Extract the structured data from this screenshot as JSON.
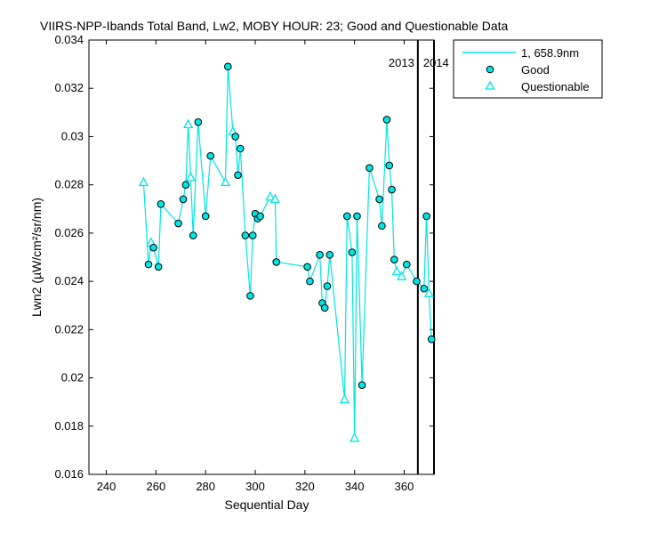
{
  "chart_data": {
    "type": "line",
    "title": "VIIRS-NPP-Ibands Total Band, Lw2, MOBY HOUR: 23;  Good and Questionable Data",
    "xlabel": "Sequential Day",
    "ylabel": "Lwn2 (µW/cm²/sr/nm)",
    "xlim": [
      233,
      372
    ],
    "ylim": [
      0.016,
      0.034
    ],
    "xticks": [
      "240",
      "260",
      "280",
      "300",
      "320",
      "340",
      "360"
    ],
    "yticks": [
      "0.016",
      "0.018",
      "0.02",
      "0.022",
      "0.024",
      "0.026",
      "0.028",
      "0.03",
      "0.032",
      "0.034"
    ],
    "grid": false,
    "legend_position": "outside-top-right",
    "year_markers": [
      {
        "day": 365.5,
        "label_left": "2013",
        "label_right": "2014"
      },
      {
        "day": 372
      }
    ],
    "series": [
      {
        "name": "1, 658.9nm",
        "kind": "line",
        "color": "#00e5e5",
        "points": [
          [
            255,
            0.0281
          ],
          [
            257,
            0.0247
          ],
          [
            258,
            0.0256
          ],
          [
            259,
            0.0254
          ],
          [
            261,
            0.0246
          ],
          [
            262,
            0.0272
          ],
          [
            269,
            0.0264
          ],
          [
            271,
            0.0274
          ],
          [
            272,
            0.028
          ],
          [
            273,
            0.0305
          ],
          [
            274,
            0.0283
          ],
          [
            275,
            0.0259
          ],
          [
            277,
            0.0306
          ],
          [
            280,
            0.0267
          ],
          [
            282,
            0.0292
          ],
          [
            288,
            0.0281
          ],
          [
            289,
            0.0329
          ],
          [
            291,
            0.0302
          ],
          [
            292,
            0.03
          ],
          [
            293,
            0.0284
          ],
          [
            294,
            0.0295
          ],
          [
            296,
            0.0259
          ],
          [
            298,
            0.0234
          ],
          [
            299,
            0.0259
          ],
          [
            300,
            0.0268
          ],
          [
            301,
            0.0266
          ],
          [
            302,
            0.0267
          ],
          [
            306,
            0.0275
          ],
          [
            308,
            0.0274
          ],
          [
            308.5,
            0.0248
          ],
          [
            321,
            0.0246
          ],
          [
            322,
            0.024
          ],
          [
            326,
            0.0251
          ],
          [
            327,
            0.0231
          ],
          [
            328,
            0.0229
          ],
          [
            329,
            0.0238
          ],
          [
            330,
            0.0251
          ],
          [
            336,
            0.0191
          ],
          [
            337,
            0.0267
          ],
          [
            339,
            0.0252
          ],
          [
            340,
            0.0175
          ],
          [
            341,
            0.0267
          ],
          [
            343,
            0.0197
          ],
          [
            346,
            0.0287
          ],
          [
            350,
            0.0274
          ],
          [
            351,
            0.0263
          ],
          [
            353,
            0.0307
          ],
          [
            354,
            0.0288
          ],
          [
            355,
            0.0278
          ],
          [
            356,
            0.0249
          ],
          [
            357,
            0.0244
          ],
          [
            359,
            0.0242
          ],
          [
            361,
            0.0247
          ],
          [
            365,
            0.024
          ],
          [
            368,
            0.0237
          ],
          [
            369,
            0.0267
          ],
          [
            370,
            0.0235
          ],
          [
            371,
            0.0216
          ]
        ]
      },
      {
        "name": "Good",
        "kind": "marker-circle",
        "color": "#00e5e5",
        "points": [
          [
            257,
            0.0247
          ],
          [
            259,
            0.0254
          ],
          [
            261,
            0.0246
          ],
          [
            262,
            0.0272
          ],
          [
            269,
            0.0264
          ],
          [
            271,
            0.0274
          ],
          [
            272,
            0.028
          ],
          [
            275,
            0.0259
          ],
          [
            277,
            0.0306
          ],
          [
            280,
            0.0267
          ],
          [
            282,
            0.0292
          ],
          [
            289,
            0.0329
          ],
          [
            292,
            0.03
          ],
          [
            293,
            0.0284
          ],
          [
            294,
            0.0295
          ],
          [
            296,
            0.0259
          ],
          [
            298,
            0.0234
          ],
          [
            299,
            0.0259
          ],
          [
            300,
            0.0268
          ],
          [
            301,
            0.0266
          ],
          [
            302,
            0.0267
          ],
          [
            308.5,
            0.0248
          ],
          [
            321,
            0.0246
          ],
          [
            322,
            0.024
          ],
          [
            326,
            0.0251
          ],
          [
            327,
            0.0231
          ],
          [
            328,
            0.0229
          ],
          [
            329,
            0.0238
          ],
          [
            330,
            0.0251
          ],
          [
            337,
            0.0267
          ],
          [
            339,
            0.0252
          ],
          [
            341,
            0.0267
          ],
          [
            343,
            0.0197
          ],
          [
            346,
            0.0287
          ],
          [
            350,
            0.0274
          ],
          [
            351,
            0.0263
          ],
          [
            353,
            0.0307
          ],
          [
            354,
            0.0288
          ],
          [
            355,
            0.0278
          ],
          [
            356,
            0.0249
          ],
          [
            361,
            0.0247
          ],
          [
            365,
            0.024
          ],
          [
            368,
            0.0237
          ],
          [
            369,
            0.0267
          ],
          [
            371,
            0.0216
          ]
        ]
      },
      {
        "name": "Questionable",
        "kind": "marker-triangle",
        "color": "#00e5e5",
        "points": [
          [
            255,
            0.0281
          ],
          [
            258,
            0.0256
          ],
          [
            273,
            0.0305
          ],
          [
            274,
            0.0283
          ],
          [
            288,
            0.0281
          ],
          [
            291,
            0.0302
          ],
          [
            306,
            0.0275
          ],
          [
            308,
            0.0274
          ],
          [
            336,
            0.0191
          ],
          [
            340,
            0.0175
          ],
          [
            357,
            0.0244
          ],
          [
            359,
            0.0242
          ],
          [
            370,
            0.0235
          ]
        ]
      }
    ]
  }
}
